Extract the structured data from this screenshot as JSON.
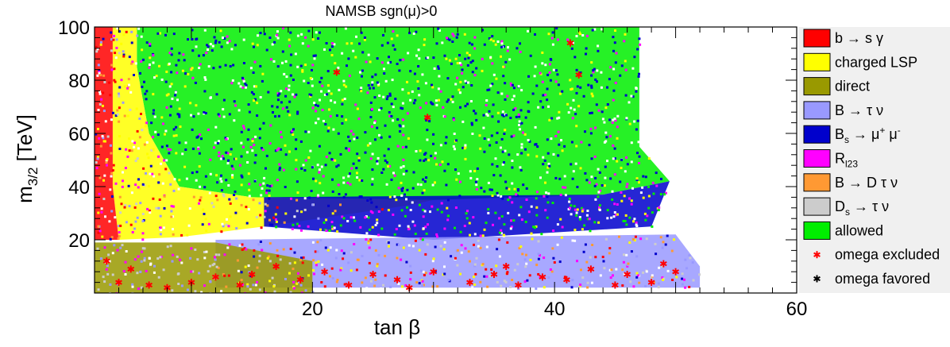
{
  "chart_data": {
    "type": "scatter",
    "title": "NAMSB    sgn(μ)>0",
    "xlabel": "tan β",
    "ylabel": "m3/2 [TeV]",
    "ylabel_main": "m",
    "ylabel_sub": "3/2",
    "ylabel_unit": " [TeV]",
    "xlim": [
      2,
      60
    ],
    "ylim": [
      0,
      100
    ],
    "x_ticks": [
      {
        "v": 20,
        "label": "20"
      },
      {
        "v": 40,
        "label": "40"
      },
      {
        "v": 60,
        "label": "60"
      }
    ],
    "y_ticks": [
      {
        "v": 20,
        "label": "20"
      },
      {
        "v": 40,
        "label": "40"
      },
      {
        "v": 60,
        "label": "60"
      },
      {
        "v": 80,
        "label": "80"
      },
      {
        "v": 100,
        "label": "100"
      }
    ],
    "legend": {
      "placement": "right",
      "entries": [
        {
          "key": "bsg",
          "label": "b → s γ",
          "color": "#ff0000",
          "marker": "box"
        },
        {
          "key": "charged",
          "label": "charged LSP",
          "color": "#ffff00",
          "marker": "box"
        },
        {
          "key": "direct",
          "label": "direct",
          "color": "#999900",
          "marker": "box"
        },
        {
          "key": "btaunu",
          "label": "B → τ ν",
          "color": "#9999ff",
          "marker": "box"
        },
        {
          "key": "bsmumu",
          "label": "Bs → μ+ μ-",
          "main": "B",
          "sub": "s",
          "rest": " → μ",
          "sup1": "+",
          "mid": " μ",
          "sup2": "-",
          "color": "#0000cc",
          "marker": "box"
        },
        {
          "key": "rl23",
          "label": "Rl23",
          "main": "R",
          "sub": "l23",
          "color": "#ff00ff",
          "marker": "box"
        },
        {
          "key": "bdtaunu",
          "label": "B → D τ ν",
          "color": "#ff9933",
          "marker": "box"
        },
        {
          "key": "dstaunu",
          "label": "Ds → τ ν",
          "main": "D",
          "sub": "s",
          "rest": " → τ ν",
          "color": "#cccccc",
          "marker": "box"
        },
        {
          "key": "allowed",
          "label": "allowed",
          "color": "#00ee00",
          "marker": "box"
        },
        {
          "key": "omega_ex",
          "label": "omega excluded",
          "color": "#ff0000",
          "marker": "star"
        },
        {
          "key": "omega_fav",
          "label": "omega favored",
          "color": "#000000",
          "marker": "star"
        }
      ]
    },
    "regions": [
      {
        "name": "allowed",
        "color": "#00ee00",
        "polygon": [
          [
            5.5,
            100
          ],
          [
            47,
            100
          ],
          [
            47,
            55
          ],
          [
            49.5,
            42
          ],
          [
            44,
            37
          ],
          [
            30,
            35
          ],
          [
            15,
            36
          ],
          [
            9,
            40
          ],
          [
            6.5,
            60
          ],
          [
            5.5,
            85
          ]
        ]
      },
      {
        "name": "charged LSP",
        "color": "#ffff00",
        "polygon": [
          [
            3.5,
            100
          ],
          [
            5.5,
            100
          ],
          [
            5.5,
            85
          ],
          [
            6.5,
            60
          ],
          [
            9,
            40
          ],
          [
            15,
            36
          ],
          [
            30,
            35
          ],
          [
            28,
            33
          ],
          [
            16,
            25
          ],
          [
            9,
            21
          ],
          [
            4,
            20
          ],
          [
            3.5,
            40
          ]
        ]
      },
      {
        "name": "b → s γ",
        "color": "#ff0000",
        "polygon": [
          [
            2,
            100
          ],
          [
            3.5,
            100
          ],
          [
            3.5,
            40
          ],
          [
            4,
            20
          ],
          [
            2,
            20
          ]
        ]
      },
      {
        "name": "Bs → μ+ μ-",
        "color": "#0000cc",
        "polygon": [
          [
            16,
            36
          ],
          [
            44,
            37
          ],
          [
            49.5,
            42
          ],
          [
            48,
            25
          ],
          [
            30,
            20
          ],
          [
            16,
            25
          ]
        ]
      },
      {
        "name": "B → τ ν",
        "color": "#9999ff",
        "polygon": [
          [
            12,
            20
          ],
          [
            50,
            22
          ],
          [
            52,
            10
          ],
          [
            52,
            2
          ],
          [
            12,
            2
          ]
        ]
      },
      {
        "name": "direct",
        "color": "#999900",
        "polygon": [
          [
            2,
            19
          ],
          [
            12,
            19
          ],
          [
            20,
            12
          ],
          [
            20,
            0
          ],
          [
            2,
            0
          ]
        ]
      }
    ],
    "omega_excluded_points": [
      [
        22,
        83
      ],
      [
        29.5,
        66
      ],
      [
        42,
        82
      ],
      [
        41.3,
        94
      ],
      [
        3,
        12
      ],
      [
        4,
        4
      ],
      [
        5,
        9
      ],
      [
        6.5,
        3
      ],
      [
        8,
        2
      ],
      [
        10,
        4
      ],
      [
        12,
        6
      ],
      [
        15,
        7
      ],
      [
        17,
        10
      ],
      [
        19,
        5
      ],
      [
        21,
        8
      ],
      [
        23,
        3
      ],
      [
        25,
        7
      ],
      [
        27,
        5
      ],
      [
        30,
        8
      ],
      [
        33,
        4
      ],
      [
        35,
        7
      ],
      [
        37,
        3
      ],
      [
        39,
        6
      ],
      [
        41,
        5
      ],
      [
        43,
        9
      ],
      [
        45,
        3
      ],
      [
        46,
        7
      ],
      [
        48,
        4
      ],
      [
        49,
        11
      ],
      [
        50,
        8
      ],
      [
        28,
        2
      ],
      [
        36,
        10
      ],
      [
        14,
        3
      ]
    ]
  }
}
